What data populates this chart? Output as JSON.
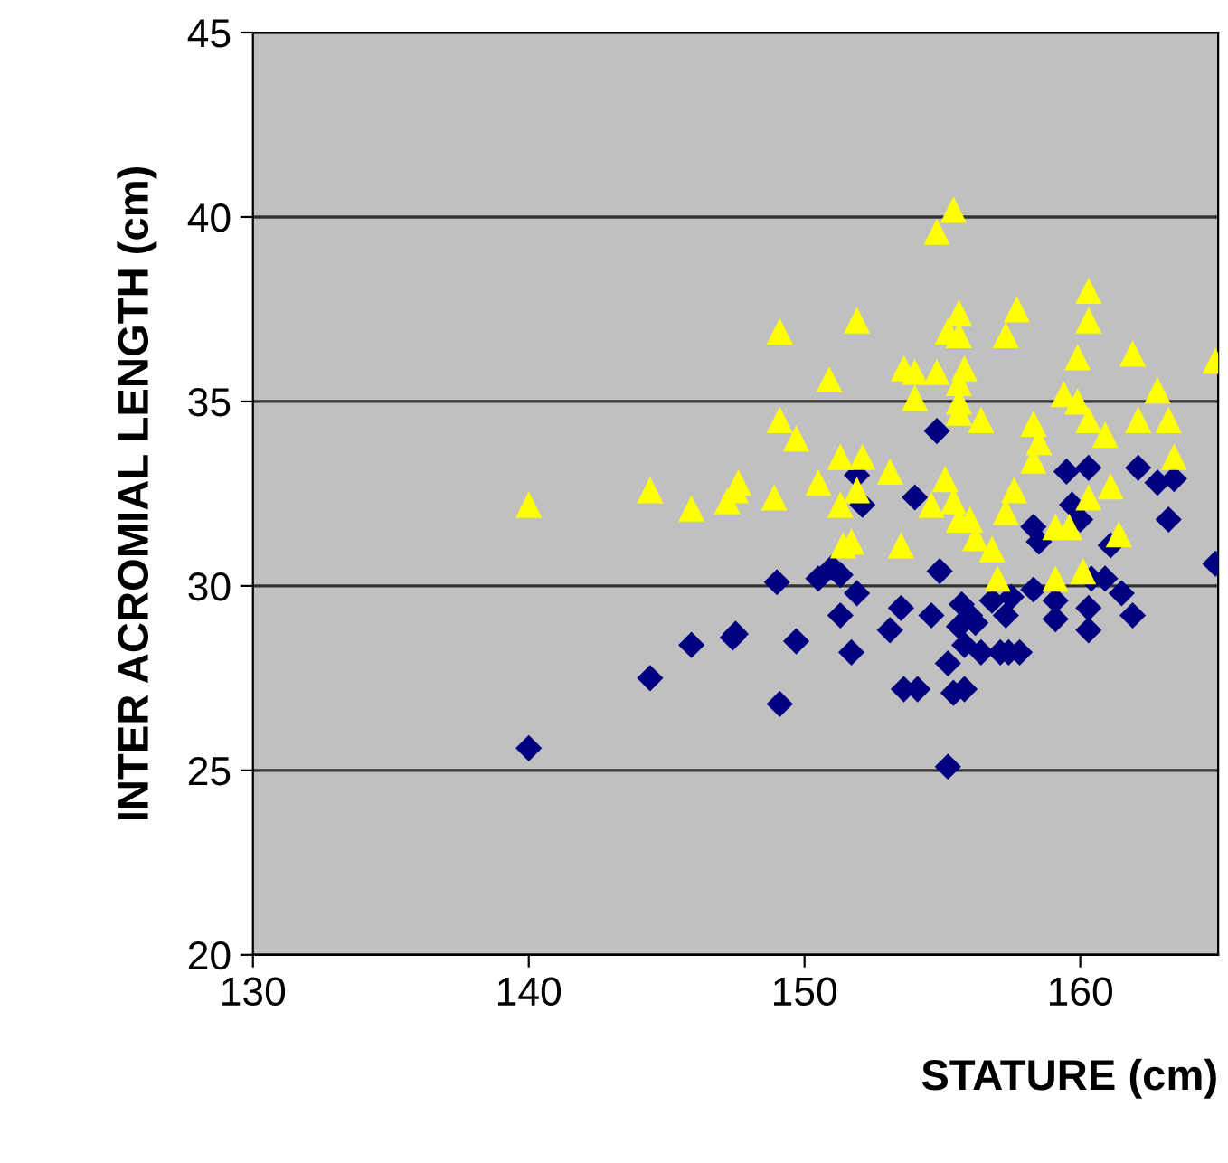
{
  "chart_data": {
    "type": "scatter",
    "xlabel": "STATURE (cm)",
    "ylabel": "INTER ACROMIAL LENGTH (cm)",
    "xlim": [
      130,
      165
    ],
    "ylim": [
      20,
      45
    ],
    "xticks": [
      130,
      140,
      150,
      160
    ],
    "yticks": [
      20,
      25,
      30,
      35,
      40,
      45
    ],
    "grid": "y",
    "legend": false,
    "series": [
      {
        "color": "#000080",
        "marker": "diamond",
        "x": [
          140.0,
          144.4,
          145.9,
          147.4,
          147.5,
          149.1,
          149.0,
          149.7,
          150.5,
          151.0,
          151.3,
          151.3,
          151.9,
          151.7,
          151.9,
          152.1,
          153.1,
          153.5,
          153.6,
          154.1,
          154.0,
          154.6,
          154.8,
          154.9,
          155.2,
          155.2,
          155.4,
          155.8,
          155.7,
          155.6,
          156.0,
          155.8,
          156.2,
          156.4,
          156.8,
          157.1,
          157.4,
          157.8,
          157.3,
          157.5,
          158.3,
          158.3,
          158.5,
          159.1,
          159.1,
          159.5,
          160.3,
          159.7,
          160.0,
          160.3,
          160.3,
          160.4,
          160.9,
          161.1,
          161.5,
          161.9,
          162.1,
          162.8,
          163.4,
          163.2,
          164.9
        ],
        "values": [
          25.6,
          27.5,
          28.4,
          28.6,
          28.7,
          26.8,
          30.1,
          28.5,
          30.2,
          30.5,
          30.3,
          29.2,
          29.8,
          28.2,
          33.0,
          32.2,
          28.8,
          29.4,
          27.2,
          27.2,
          32.4,
          29.2,
          34.2,
          30.4,
          27.9,
          25.1,
          27.1,
          27.2,
          29.5,
          28.9,
          29.2,
          28.4,
          29.0,
          28.2,
          29.6,
          28.2,
          28.2,
          28.2,
          29.2,
          29.7,
          29.9,
          31.6,
          31.2,
          29.6,
          29.1,
          33.1,
          33.2,
          32.2,
          31.8,
          29.4,
          28.8,
          30.2,
          30.2,
          31.1,
          29.8,
          29.2,
          33.2,
          32.8,
          32.9,
          31.8,
          30.6
        ]
      },
      {
        "color": "#ffff00",
        "marker": "triangle",
        "x": [
          140.0,
          144.4,
          145.9,
          147.5,
          155.4,
          154.8,
          149.1,
          151.9,
          150.9,
          149.1,
          149.7,
          151.3,
          152.1,
          147.6,
          147.2,
          148.9,
          150.5,
          151.9,
          151.3,
          153.1,
          151.4,
          151.7,
          153.5,
          153.6,
          154.0,
          154.0,
          154.8,
          155.2,
          155.6,
          155.6,
          155.8,
          155.6,
          155.6,
          155.6,
          156.4,
          155.1,
          154.6,
          155.4,
          155.6,
          156.0,
          156.2,
          156.8,
          157.0,
          157.7,
          157.3,
          158.3,
          158.5,
          158.3,
          157.6,
          157.3,
          159.1,
          159.6,
          159.1,
          160.1,
          160.3,
          161.1,
          161.4,
          160.3,
          160.3,
          159.9,
          159.4,
          159.9,
          160.3,
          160.9,
          161.9,
          162.8,
          162.1,
          163.2,
          163.4,
          164.9
        ],
        "values": [
          32.2,
          32.6,
          32.1,
          32.6,
          40.2,
          39.6,
          36.9,
          37.2,
          35.6,
          34.5,
          34.0,
          33.5,
          33.5,
          32.8,
          32.3,
          32.4,
          32.8,
          32.6,
          32.2,
          33.1,
          31.1,
          31.2,
          31.1,
          35.9,
          35.8,
          35.1,
          35.8,
          36.9,
          37.4,
          36.8,
          35.9,
          35.5,
          35.0,
          34.7,
          34.5,
          32.9,
          32.2,
          32.3,
          31.8,
          31.8,
          31.3,
          31.0,
          30.2,
          37.5,
          36.8,
          34.4,
          33.9,
          33.4,
          32.6,
          32.0,
          31.6,
          31.6,
          30.2,
          30.4,
          32.4,
          32.7,
          31.4,
          38.0,
          37.2,
          36.2,
          35.2,
          35.0,
          34.5,
          34.1,
          36.3,
          35.3,
          34.5,
          34.5,
          33.5,
          36.1
        ]
      }
    ]
  }
}
